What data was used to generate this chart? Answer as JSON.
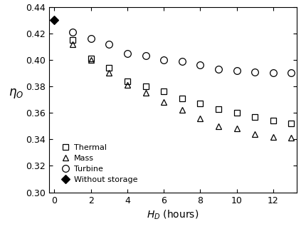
{
  "thermal_x": [
    1,
    2,
    3,
    4,
    5,
    6,
    7,
    8,
    9,
    10,
    11,
    12,
    13
  ],
  "thermal_y": [
    0.415,
    0.401,
    0.394,
    0.384,
    0.38,
    0.376,
    0.371,
    0.367,
    0.363,
    0.36,
    0.357,
    0.354,
    0.352
  ],
  "mass_x": [
    1,
    2,
    3,
    4,
    5,
    6,
    7,
    8,
    9,
    10,
    11,
    12,
    13
  ],
  "mass_y": [
    0.412,
    0.4,
    0.39,
    0.381,
    0.375,
    0.368,
    0.362,
    0.356,
    0.35,
    0.348,
    0.344,
    0.342,
    0.341
  ],
  "turbine_x": [
    1,
    2,
    3,
    4,
    5,
    6,
    7,
    8,
    9,
    10,
    11,
    12,
    13
  ],
  "turbine_y": [
    0.421,
    0.416,
    0.412,
    0.405,
    0.403,
    0.4,
    0.399,
    0.396,
    0.393,
    0.392,
    0.391,
    0.39,
    0.39
  ],
  "nostorage_x": [
    0
  ],
  "nostorage_y": [
    0.43
  ],
  "ylim": [
    0.3,
    0.44
  ],
  "xlim": [
    -0.3,
    13.3
  ],
  "yticks": [
    0.3,
    0.32,
    0.34,
    0.36,
    0.38,
    0.4,
    0.42,
    0.44
  ],
  "xticks": [
    0,
    2,
    4,
    6,
    8,
    10,
    12
  ],
  "xlabel": "$H_D$ (hours)",
  "ylabel": "$\\eta_O$",
  "legend_thermal": "Thermal",
  "legend_mass": "Mass",
  "legend_turbine": "Turbine",
  "legend_nostorage": "Without storage",
  "marker_color": "black",
  "bg_color": "white"
}
